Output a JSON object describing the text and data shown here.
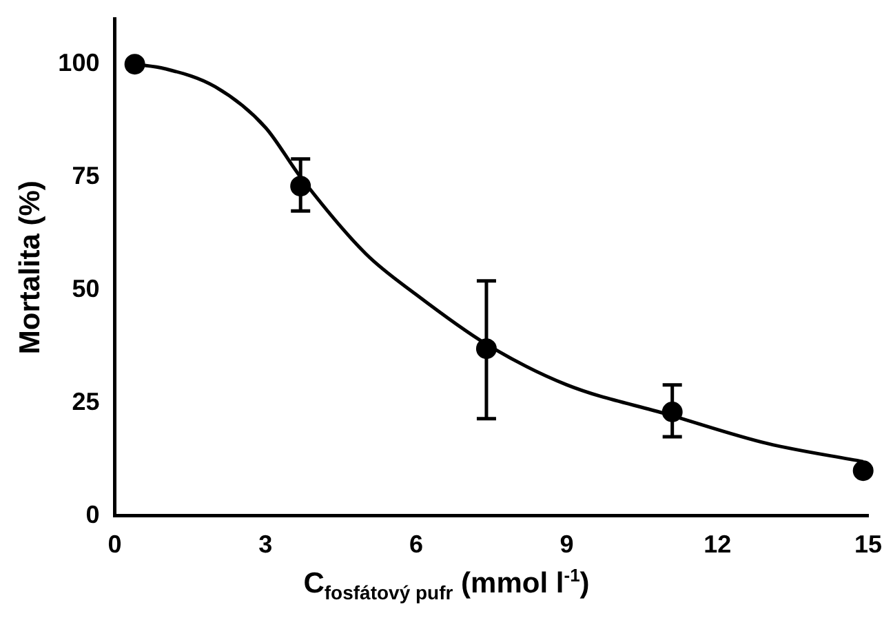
{
  "chart_data": {
    "type": "scatter",
    "xlabel": "C$_{fosfátový pufr}$ (mmol l$^{-1}$)",
    "ylabel": "Mortalita (%)",
    "xlim": [
      0,
      15
    ],
    "ylim": [
      0,
      110
    ],
    "xticks": [
      0,
      3,
      6,
      9,
      12,
      15
    ],
    "yticks": [
      0,
      25,
      50,
      75,
      100
    ],
    "grid": false,
    "legend": false,
    "series": [
      {
        "color": "#000000",
        "marker": "circle",
        "x": [
          0.4,
          3.7,
          7.4,
          11.1,
          14.9
        ],
        "values": [
          100,
          73,
          37,
          23,
          10
        ],
        "errors": [
          null,
          [
            67.5,
            79
          ],
          [
            21.5,
            52
          ],
          [
            17.5,
            29
          ],
          null
        ]
      },
      {
        "type": "line",
        "color": "#000000",
        "marker": "none",
        "line_style": "solid",
        "x": [
          0.4,
          1,
          2,
          3,
          3.7,
          5,
          6,
          7.4,
          9,
          11,
          13,
          14.9
        ],
        "values": [
          100,
          99,
          95,
          86,
          75,
          58,
          49,
          38,
          29,
          22.5,
          16,
          12
        ]
      }
    ]
  }
}
